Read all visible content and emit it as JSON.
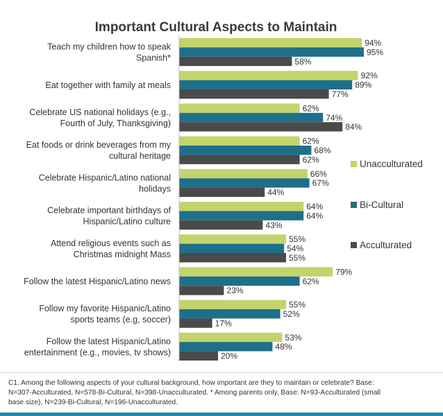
{
  "colors": {
    "Unacculturated": "#c4d36b",
    "Bi-Cultural": "#1f6f8b",
    "Acculturated": "#4a4a4a"
  },
  "chart_data": {
    "type": "bar",
    "orientation": "horizontal",
    "title": "Important Cultural Aspects to Maintain",
    "categories": [
      [
        "Teach my children how to speak",
        "Spanish*"
      ],
      [
        "Eat together with family at meals"
      ],
      [
        "Celebrate US national holidays (e.g.,",
        "Fourth of July, Thanksgiving)"
      ],
      [
        "Eat foods or drink beverages from my",
        "cultural heritage"
      ],
      [
        "Celebrate Hispanic/Latino national",
        "holidays"
      ],
      [
        "Celebrate important birthdays of",
        "Hispanic/Latino culture"
      ],
      [
        "Attend religious events such as",
        "Christmas midnight Mass"
      ],
      [
        "Follow the latest Hispanic/Latino news"
      ],
      [
        "Follow my favorite Hispanic/Latino",
        "sports teams (e.g, soccer)"
      ],
      [
        "Follow the latest Hispanic/Latino",
        "entertainment (e.g., movies, tv shows)"
      ]
    ],
    "series": [
      {
        "name": "Unacculturated",
        "values": [
          94,
          92,
          62,
          62,
          66,
          64,
          55,
          79,
          55,
          53
        ]
      },
      {
        "name": "Bi-Cultural",
        "values": [
          95,
          89,
          74,
          68,
          67,
          64,
          54,
          62,
          52,
          48
        ]
      },
      {
        "name": "Acculturated",
        "values": [
          58,
          77,
          84,
          62,
          44,
          43,
          55,
          23,
          17,
          20
        ]
      }
    ],
    "value_suffix": "%",
    "xlim": [
      0,
      100
    ],
    "grid": false,
    "legend_position": "right"
  },
  "footnote": {
    "line1": "C1. Among the following aspects of your cultural background, how important are they to maintain or celebrate? Base:",
    "line2": "N=307-Acculturated, N=578-Bi-Cultural, N=398-Unacculturated. * Among parents only, Base: N=93-Acculturated (small",
    "line3": "base size), N=239-Bi-Cultural, N=196-Unacculturated."
  }
}
